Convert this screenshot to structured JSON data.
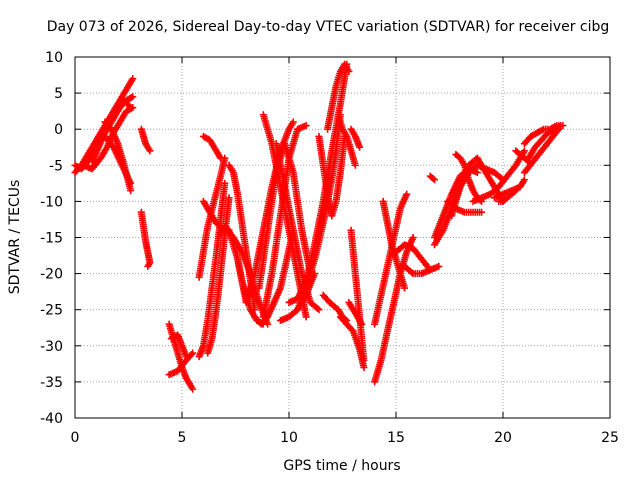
{
  "chart_data": {
    "type": "scatter",
    "title": "Day 073 of 2026, Sidereal Day-to-day VTEC variation (SDTVAR) for receiver cibg",
    "xlabel": "GPS time / hours",
    "ylabel": "SDTVAR / TECUs",
    "xlim": [
      0,
      25
    ],
    "ylim": [
      -40,
      10
    ],
    "xticks": [
      0,
      5,
      10,
      15,
      20,
      25
    ],
    "yticks": [
      -40,
      -35,
      -30,
      -25,
      -20,
      -15,
      -10,
      -5,
      0,
      5,
      10
    ],
    "grid": true,
    "marker": "plus",
    "color": "#ff0000",
    "series": [
      {
        "name": "s1",
        "x": [
          0.0,
          0.3,
          0.6,
          0.9,
          1.2,
          1.5,
          1.8,
          2.1,
          2.4,
          2.7
        ],
        "y": [
          -6.0,
          -5.0,
          -3.5,
          -2.0,
          -0.5,
          1.0,
          2.5,
          4.0,
          5.5,
          7.0
        ]
      },
      {
        "name": "s2",
        "x": [
          0.0,
          0.3,
          0.6,
          0.9,
          1.2,
          1.5,
          1.8,
          2.1,
          2.4,
          2.7
        ],
        "y": [
          -5.0,
          -5.5,
          -4.5,
          -3.0,
          -1.5,
          0.0,
          1.5,
          3.0,
          4.0,
          4.5
        ]
      },
      {
        "name": "s3",
        "x": [
          0.8,
          1.1,
          1.4,
          1.7,
          2.0,
          2.3,
          2.6
        ],
        "y": [
          -4.5,
          -2.5,
          -0.5,
          1.5,
          3.0,
          4.0,
          3.0
        ]
      },
      {
        "name": "s4",
        "x": [
          0.4,
          0.8,
          1.2,
          1.5,
          1.8,
          2.1,
          2.4,
          2.7
        ],
        "y": [
          -5.0,
          -5.5,
          -4.0,
          -2.5,
          -0.5,
          1.0,
          2.5,
          3.0
        ]
      },
      {
        "name": "s5",
        "x": [
          1.4,
          1.7,
          2.0,
          2.3,
          2.6
        ],
        "y": [
          1.0,
          0.0,
          -2.0,
          -5.0,
          -8.5
        ]
      },
      {
        "name": "s6",
        "x": [
          1.0,
          1.4,
          1.8,
          2.2,
          2.6
        ],
        "y": [
          -2.0,
          -1.0,
          -2.5,
          -5.0,
          -7.5
        ]
      },
      {
        "name": "s7",
        "x": [
          3.1,
          3.2,
          3.3,
          3.4,
          3.5
        ],
        "y": [
          0.0,
          -1.0,
          -2.0,
          -2.5,
          -3.0
        ]
      },
      {
        "name": "s8",
        "x": [
          3.1,
          3.2,
          3.3,
          3.4,
          3.5,
          3.4
        ],
        "y": [
          -11.5,
          -13.5,
          -15.5,
          -17.0,
          -18.5,
          -19.0
        ]
      },
      {
        "name": "s9",
        "x": [
          4.4,
          4.6,
          4.8,
          5.0,
          5.2,
          5.5
        ],
        "y": [
          -27.0,
          -29.0,
          -31.0,
          -33.0,
          -34.5,
          -36.0
        ]
      },
      {
        "name": "s10",
        "x": [
          4.4,
          4.8,
          5.2,
          5.5
        ],
        "y": [
          -34.0,
          -33.5,
          -32.0,
          -31.0
        ]
      },
      {
        "name": "s11",
        "x": [
          4.5,
          4.8,
          5.0,
          5.2
        ],
        "y": [
          -29.0,
          -28.5,
          -30.0,
          -31.5
        ]
      },
      {
        "name": "s12",
        "x": [
          5.8,
          6.0,
          6.2,
          6.4,
          6.6,
          6.8,
          7.0
        ],
        "y": [
          -31.5,
          -30.0,
          -26.5,
          -22.0,
          -17.5,
          -12.5,
          -7.5
        ]
      },
      {
        "name": "s13",
        "x": [
          6.2,
          6.4,
          6.6,
          6.8,
          7.0,
          7.2
        ],
        "y": [
          -31.0,
          -29.0,
          -25.0,
          -20.0,
          -14.5,
          -9.5
        ]
      },
      {
        "name": "s14",
        "x": [
          6.0,
          6.2,
          6.4,
          6.6,
          6.8
        ],
        "y": [
          -10.0,
          -11.0,
          -12.0,
          -13.0,
          -13.5
        ]
      },
      {
        "name": "s15",
        "x": [
          5.8,
          6.0,
          6.2,
          6.5,
          6.8,
          7.0
        ],
        "y": [
          -20.5,
          -17.0,
          -13.5,
          -10.0,
          -6.5,
          -4.0
        ]
      },
      {
        "name": "s16",
        "x": [
          6.0,
          6.3,
          6.6,
          6.8
        ],
        "y": [
          -1.0,
          -1.5,
          -3.0,
          -4.0
        ]
      },
      {
        "name": "s17",
        "x": [
          6.8,
          7.0,
          7.2,
          7.4,
          7.6,
          7.8,
          8.0
        ],
        "y": [
          -14.5,
          -13.5,
          -14.0,
          -16.0,
          -18.0,
          -21.0,
          -24.0
        ]
      },
      {
        "name": "s18",
        "x": [
          7.0,
          7.4,
          7.8,
          8.2,
          8.6,
          9.0
        ],
        "y": [
          -13.5,
          -15.0,
          -17.0,
          -20.0,
          -24.0,
          -27.0
        ]
      },
      {
        "name": "s19",
        "x": [
          7.2,
          7.4,
          7.6,
          7.8,
          8.0,
          8.2,
          8.4
        ],
        "y": [
          -5.0,
          -6.0,
          -9.0,
          -13.0,
          -17.0,
          -21.0,
          -25.0
        ]
      },
      {
        "name": "s20",
        "x": [
          7.6,
          7.8,
          8.0,
          8.2,
          8.5,
          8.8
        ],
        "y": [
          -18.0,
          -21.0,
          -23.0,
          -25.0,
          -26.5,
          -27.0
        ]
      },
      {
        "name": "s21",
        "x": [
          8.4,
          8.7,
          9.0,
          9.3,
          9.6,
          9.9,
          10.2
        ],
        "y": [
          -26.0,
          -27.0,
          -26.0,
          -24.0,
          -22.0,
          -18.0,
          -14.0
        ]
      },
      {
        "name": "s22",
        "x": [
          8.0,
          8.4,
          8.8,
          9.2,
          9.6,
          10.0,
          10.2
        ],
        "y": [
          -24.0,
          -20.0,
          -14.0,
          -8.0,
          -3.0,
          0.0,
          1.0
        ]
      },
      {
        "name": "s23",
        "x": [
          8.6,
          9.0,
          9.4,
          9.8,
          10.2,
          10.6,
          11.0
        ],
        "y": [
          -22.0,
          -14.0,
          -6.0,
          -2.0,
          -6.0,
          -14.0,
          -20.0
        ]
      },
      {
        "name": "s24",
        "x": [
          8.8,
          9.2,
          9.6,
          10.0,
          10.4,
          10.8
        ],
        "y": [
          -26.0,
          -20.0,
          -12.0,
          -4.0,
          0.0,
          0.5
        ]
      },
      {
        "name": "s25",
        "x": [
          8.8,
          9.2,
          9.6,
          10.0,
          10.4,
          10.8
        ],
        "y": [
          2.0,
          -2.0,
          -8.0,
          -14.0,
          -20.0,
          -26.0
        ]
      },
      {
        "name": "s26",
        "x": [
          9.4,
          9.8,
          10.2,
          10.6,
          11.0,
          11.4
        ],
        "y": [
          -2.0,
          -8.0,
          -14.0,
          -20.0,
          -24.0,
          -25.0
        ]
      },
      {
        "name": "s27",
        "x": [
          9.6,
          10.0,
          10.4,
          10.8,
          11.2
        ],
        "y": [
          -26.5,
          -26.0,
          -25.0,
          -23.0,
          -20.0
        ]
      },
      {
        "name": "s28",
        "x": [
          10.0,
          10.4,
          10.8,
          11.2,
          11.6,
          12.0,
          12.4,
          12.7
        ],
        "y": [
          -24.0,
          -23.5,
          -21.0,
          -16.0,
          -10.0,
          -3.0,
          3.5,
          9.0
        ]
      },
      {
        "name": "s29",
        "x": [
          10.4,
          10.8,
          11.2,
          11.6,
          12.0,
          12.2,
          12.4
        ],
        "y": [
          -25.0,
          -22.0,
          -18.0,
          -13.0,
          -7.0,
          -3.0,
          2.0
        ]
      },
      {
        "name": "s30",
        "x": [
          11.4,
          11.6,
          11.8,
          12.0,
          12.2,
          12.4,
          12.6
        ],
        "y": [
          -1.0,
          -5.0,
          -9.0,
          -12.0,
          -10.0,
          -6.0,
          -1.0
        ]
      },
      {
        "name": "s31",
        "x": [
          11.6,
          11.9,
          12.1,
          12.3,
          12.5,
          12.7
        ],
        "y": [
          -23.0,
          -24.0,
          -24.5,
          -25.0,
          -26.0,
          -26.5
        ]
      },
      {
        "name": "s32",
        "x": [
          11.8,
          12.0,
          12.2,
          12.4,
          12.6,
          12.8
        ],
        "y": [
          0.0,
          3.0,
          6.0,
          8.0,
          9.0,
          8.0
        ]
      },
      {
        "name": "s33",
        "x": [
          12.3,
          12.5,
          12.7,
          12.9,
          13.1
        ],
        "y": [
          2.0,
          0.0,
          -1.0,
          -3.0,
          -5.0
        ]
      },
      {
        "name": "s34",
        "x": [
          12.4,
          12.7,
          13.0,
          13.3,
          13.5
        ],
        "y": [
          -26.0,
          -27.0,
          -28.0,
          -30.5,
          -33.0
        ]
      },
      {
        "name": "s35",
        "x": [
          12.9,
          13.0,
          13.1,
          13.2,
          13.3,
          13.4,
          13.5
        ],
        "y": [
          -14.0,
          -17.0,
          -20.0,
          -23.0,
          -26.0,
          -29.0,
          -32.0
        ]
      },
      {
        "name": "s36",
        "x": [
          12.8,
          13.0,
          13.2,
          13.4
        ],
        "y": [
          -24.0,
          -25.0,
          -26.0,
          -27.0
        ]
      },
      {
        "name": "s37",
        "x": [
          12.9,
          13.1,
          13.3
        ],
        "y": [
          0.0,
          -1.0,
          -2.5
        ]
      },
      {
        "name": "s38",
        "x": [
          14.0,
          14.3,
          14.6,
          14.9,
          15.2,
          15.5,
          15.8
        ],
        "y": [
          -35.0,
          -32.0,
          -28.0,
          -24.0,
          -20.0,
          -17.0,
          -15.0
        ]
      },
      {
        "name": "s39",
        "x": [
          14.0,
          14.3,
          14.6,
          14.9,
          15.2,
          15.5
        ],
        "y": [
          -27.0,
          -23.0,
          -19.0,
          -15.0,
          -11.0,
          -9.0
        ]
      },
      {
        "name": "s40",
        "x": [
          14.4,
          14.6,
          14.8,
          15.0,
          15.2,
          15.4
        ],
        "y": [
          -10.0,
          -13.0,
          -16.0,
          -18.0,
          -20.0,
          -22.0
        ]
      },
      {
        "name": "s41",
        "x": [
          15.0,
          15.4,
          15.8,
          16.2,
          16.6,
          17.0
        ],
        "y": [
          -17.0,
          -16.0,
          -16.5,
          -18.0,
          -19.5,
          -19.0
        ]
      },
      {
        "name": "s42",
        "x": [
          15.4,
          15.8,
          16.2,
          16.6
        ],
        "y": [
          -19.0,
          -20.0,
          -20.0,
          -19.5
        ]
      },
      {
        "name": "s43",
        "x": [
          16.6,
          16.8
        ],
        "y": [
          -6.5,
          -7.0
        ]
      },
      {
        "name": "s44",
        "x": [
          16.8,
          17.2,
          17.6,
          18.0,
          18.4,
          18.8,
          19.2,
          19.6,
          20.0
        ],
        "y": [
          -16.0,
          -14.0,
          -11.0,
          -8.0,
          -6.0,
          -5.0,
          -5.5,
          -6.0,
          -7.0
        ]
      },
      {
        "name": "s45",
        "x": [
          16.8,
          17.2,
          17.6,
          18.0,
          18.4,
          18.8
        ],
        "y": [
          -15.0,
          -12.0,
          -9.0,
          -6.5,
          -5.5,
          -6.0
        ]
      },
      {
        "name": "s46",
        "x": [
          17.4,
          17.8,
          18.2,
          18.6,
          19.0
        ],
        "y": [
          -10.0,
          -11.0,
          -11.5,
          -11.5,
          -11.5
        ]
      },
      {
        "name": "s47",
        "x": [
          17.6,
          18.0,
          18.4,
          18.8,
          19.2,
          19.6,
          20.0
        ],
        "y": [
          -12.0,
          -8.0,
          -5.0,
          -4.0,
          -6.0,
          -8.0,
          -10.0
        ]
      },
      {
        "name": "s48",
        "x": [
          17.8,
          18.0,
          18.2,
          18.4,
          18.6,
          18.8,
          19.0
        ],
        "y": [
          -3.5,
          -4.0,
          -5.0,
          -7.0,
          -8.5,
          -9.5,
          -10.0
        ]
      },
      {
        "name": "s49",
        "x": [
          18.6,
          19.0,
          19.4,
          19.8,
          20.2,
          20.6,
          21.0
        ],
        "y": [
          -10.0,
          -9.5,
          -9.0,
          -8.0,
          -6.5,
          -5.0,
          -3.0
        ]
      },
      {
        "name": "s50",
        "x": [
          19.6,
          20.0,
          20.4,
          20.8,
          21.0
        ],
        "y": [
          -9.5,
          -9.0,
          -8.5,
          -8.0,
          -7.0
        ]
      },
      {
        "name": "s51",
        "x": [
          19.8,
          20.0,
          20.2,
          20.4,
          20.6
        ],
        "y": [
          -10.0,
          -10.0,
          -9.5,
          -9.0,
          -8.5
        ]
      },
      {
        "name": "s52",
        "x": [
          20.6,
          20.8,
          21.0,
          21.2
        ],
        "y": [
          -3.0,
          -3.5,
          -4.0,
          -4.5
        ]
      },
      {
        "name": "s53",
        "x": [
          21.0,
          21.4,
          21.8,
          22.2,
          22.6
        ],
        "y": [
          -6.0,
          -4.5,
          -3.0,
          -1.5,
          0.0
        ]
      },
      {
        "name": "s54",
        "x": [
          21.2,
          21.5,
          21.8,
          22.1,
          22.4,
          22.7
        ],
        "y": [
          -4.0,
          -2.5,
          -1.5,
          -0.5,
          0.0,
          0.5
        ]
      },
      {
        "name": "s55",
        "x": [
          21.0,
          21.3,
          21.6,
          21.9,
          22.2,
          22.5,
          22.8
        ],
        "y": [
          -2.0,
          -1.0,
          -0.5,
          0.0,
          0.0,
          0.5,
          0.5
        ]
      }
    ]
  }
}
